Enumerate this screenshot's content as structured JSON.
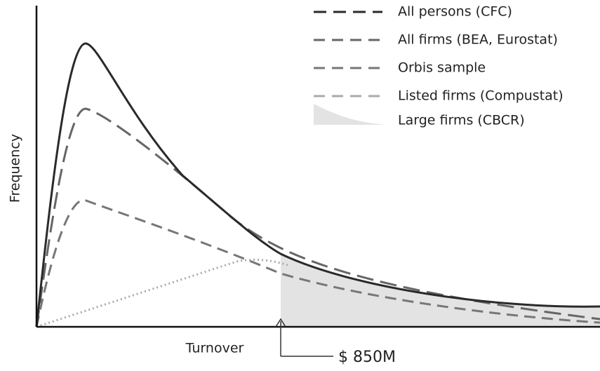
{
  "legend": [
    "All persons (CFC)",
    "All firms (BEA, Eurostat)",
    "Orbis sample",
    "Listed firms (Compustat)",
    "Large firms (CBCR)"
  ],
  "y_axis_label": "Frequency",
  "x_axis_label": "Turnover",
  "annotation": "$ 850M"
}
